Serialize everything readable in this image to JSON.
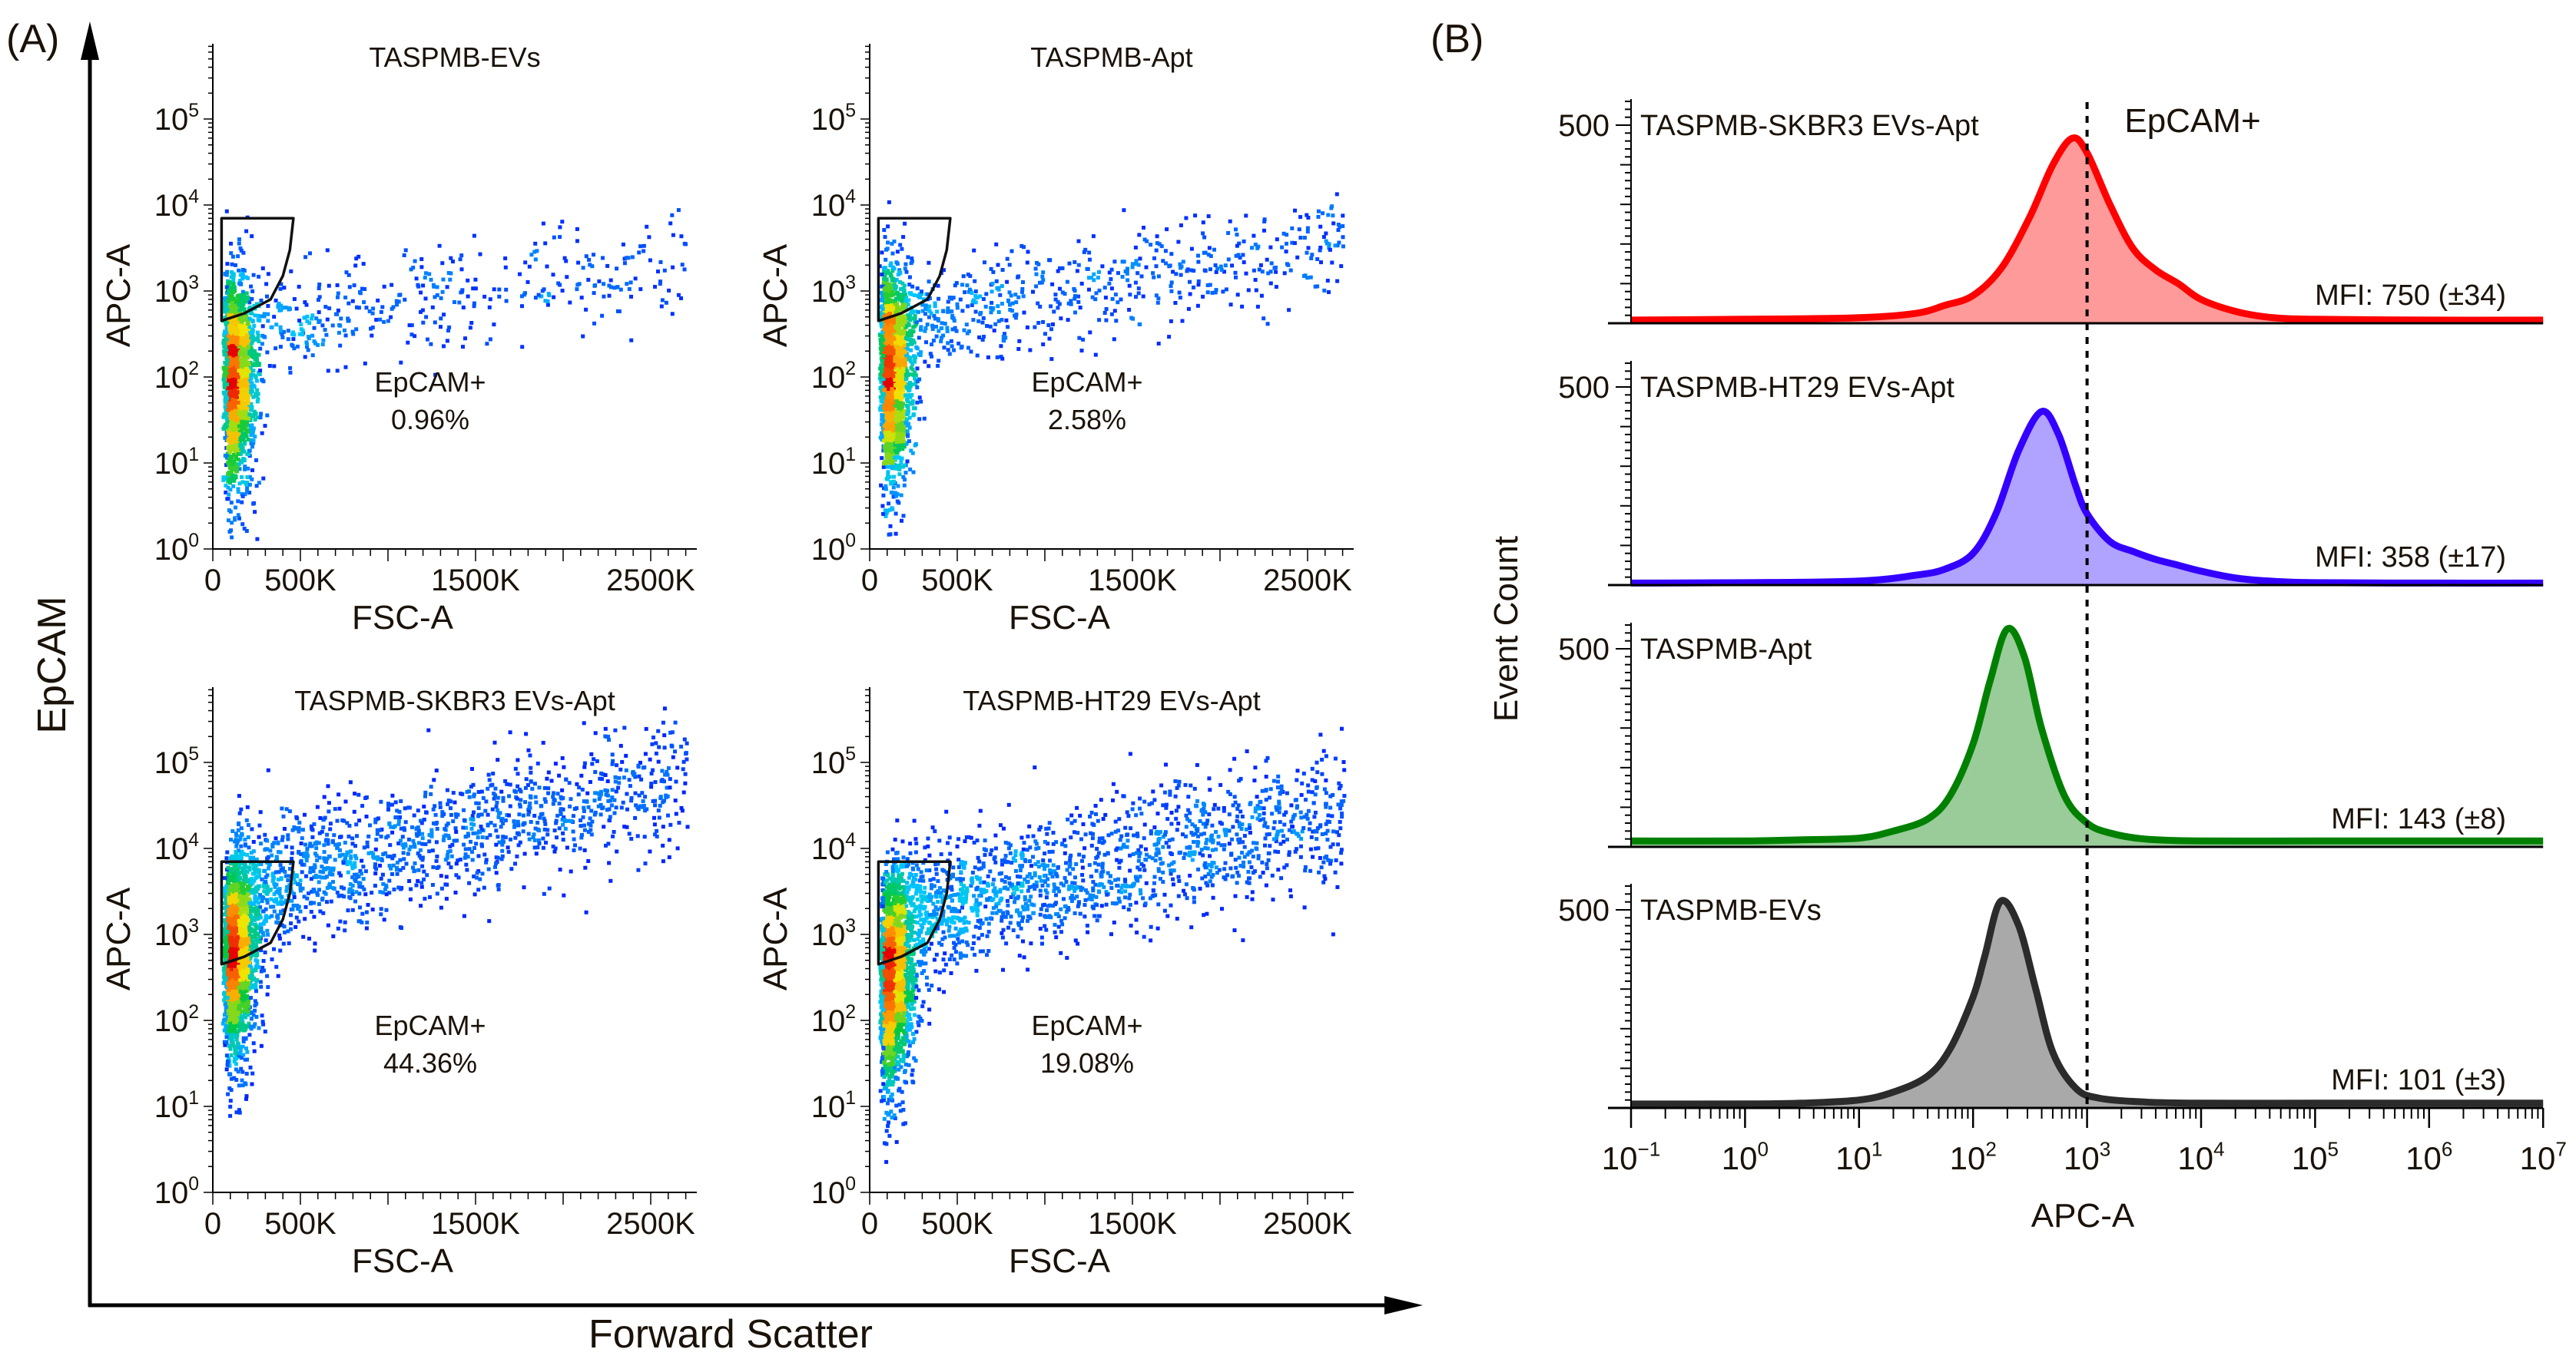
{
  "panel_a": {
    "label": "(A)",
    "y_label": "EpCAM",
    "x_label": "Forward Scatter"
  },
  "panel_b": {
    "label": "(B)",
    "gate_label": "EpCAM+"
  },
  "chart_data": [
    {
      "type": "scatter",
      "title": "TASPMB-EVs",
      "xlabel": "FSC-A",
      "ylabel": "APC-A",
      "x_scale": "linear",
      "y_scale": "log",
      "xlim_K": [
        0,
        2760
      ],
      "ylim_log10": [
        0,
        5.88
      ],
      "x_tick_labels": [
        "0",
        "500K",
        "1500K",
        "2500K"
      ],
      "x_tick_values_K": [
        0,
        500,
        1500,
        2500
      ],
      "y_ticks": [
        {
          "base": "10",
          "exp": "0"
        },
        {
          "base": "10",
          "exp": "1"
        },
        {
          "base": "10",
          "exp": "2"
        },
        {
          "base": "10",
          "exp": "3"
        },
        {
          "base": "10",
          "exp": "4"
        },
        {
          "base": "10",
          "exp": "5"
        }
      ],
      "gate_name": "EpCAM+",
      "gate_percent": "0.96%",
      "gate_vertices_K_value": [
        [
          50,
          7000
        ],
        [
          460,
          7000
        ],
        [
          440,
          3000
        ],
        [
          400,
          1500
        ],
        [
          330,
          800
        ],
        [
          180,
          550
        ],
        [
          50,
          450
        ]
      ]
    },
    {
      "type": "scatter",
      "title": "TASPMB-Apt",
      "xlabel": "FSC-A",
      "ylabel": "APC-A",
      "x_scale": "linear",
      "y_scale": "log",
      "xlim_K": [
        0,
        2760
      ],
      "ylim_log10": [
        0,
        5.88
      ],
      "x_tick_labels": [
        "0",
        "500K",
        "1500K",
        "2500K"
      ],
      "x_tick_values_K": [
        0,
        500,
        1500,
        2500
      ],
      "y_ticks": [
        {
          "base": "10",
          "exp": "0"
        },
        {
          "base": "10",
          "exp": "1"
        },
        {
          "base": "10",
          "exp": "2"
        },
        {
          "base": "10",
          "exp": "3"
        },
        {
          "base": "10",
          "exp": "4"
        },
        {
          "base": "10",
          "exp": "5"
        }
      ],
      "gate_name": "EpCAM+",
      "gate_percent": "2.58%",
      "gate_vertices_K_value": [
        [
          50,
          7000
        ],
        [
          460,
          7000
        ],
        [
          440,
          3000
        ],
        [
          400,
          1500
        ],
        [
          330,
          800
        ],
        [
          180,
          550
        ],
        [
          50,
          450
        ]
      ]
    },
    {
      "type": "scatter",
      "title": "TASPMB-SKBR3 EVs-Apt",
      "xlabel": "FSC-A",
      "ylabel": "APC-A",
      "x_scale": "linear",
      "y_scale": "log",
      "xlim_K": [
        0,
        2760
      ],
      "ylim_log10": [
        0,
        5.88
      ],
      "x_tick_labels": [
        "0",
        "500K",
        "1500K",
        "2500K"
      ],
      "x_tick_values_K": [
        0,
        500,
        1500,
        2500
      ],
      "y_ticks": [
        {
          "base": "10",
          "exp": "0"
        },
        {
          "base": "10",
          "exp": "1"
        },
        {
          "base": "10",
          "exp": "2"
        },
        {
          "base": "10",
          "exp": "3"
        },
        {
          "base": "10",
          "exp": "4"
        },
        {
          "base": "10",
          "exp": "5"
        }
      ],
      "gate_name": "EpCAM+",
      "gate_percent": "44.36%",
      "gate_vertices_K_value": [
        [
          50,
          7000
        ],
        [
          460,
          7000
        ],
        [
          440,
          3000
        ],
        [
          400,
          1500
        ],
        [
          330,
          800
        ],
        [
          180,
          550
        ],
        [
          50,
          450
        ]
      ]
    },
    {
      "type": "scatter",
      "title": "TASPMB-HT29 EVs-Apt",
      "xlabel": "FSC-A",
      "ylabel": "APC-A",
      "x_scale": "linear",
      "y_scale": "log",
      "xlim_K": [
        0,
        2760
      ],
      "ylim_log10": [
        0,
        5.88
      ],
      "x_tick_labels": [
        "0",
        "500K",
        "1500K",
        "2500K"
      ],
      "x_tick_values_K": [
        0,
        500,
        1500,
        2500
      ],
      "y_ticks": [
        {
          "base": "10",
          "exp": "0"
        },
        {
          "base": "10",
          "exp": "1"
        },
        {
          "base": "10",
          "exp": "2"
        },
        {
          "base": "10",
          "exp": "3"
        },
        {
          "base": "10",
          "exp": "4"
        },
        {
          "base": "10",
          "exp": "5"
        }
      ],
      "gate_name": "EpCAM+",
      "gate_percent": "19.08%",
      "gate_vertices_K_value": [
        [
          50,
          7000
        ],
        [
          460,
          7000
        ],
        [
          440,
          3000
        ],
        [
          400,
          1500
        ],
        [
          330,
          800
        ],
        [
          180,
          550
        ],
        [
          50,
          450
        ]
      ]
    },
    {
      "type": "area",
      "title": "",
      "xlabel": "APC-A",
      "ylabel": "Event Count",
      "x_scale": "log",
      "xlim_log10": [
        -1,
        7
      ],
      "ylim": [
        0,
        566
      ],
      "y_tick_label": "500",
      "y_tick_value": 500,
      "x_ticks": [
        {
          "base": "10",
          "exp": "−1"
        },
        {
          "base": "10",
          "exp": "0"
        },
        {
          "base": "10",
          "exp": "1"
        },
        {
          "base": "10",
          "exp": "2"
        },
        {
          "base": "10",
          "exp": "3"
        },
        {
          "base": "10",
          "exp": "4"
        },
        {
          "base": "10",
          "exp": "5"
        },
        {
          "base": "10",
          "exp": "6"
        },
        {
          "base": "10",
          "exp": "7"
        }
      ],
      "threshold_log10": 3,
      "series": [
        {
          "name": "TASPMB-SKBR3 EVs-Apt",
          "mfi": "MFI: 750 (±34)",
          "stroke": "#ff0000",
          "fill": "#ff9a9a",
          "x_log10": [
            -1,
            0,
            1,
            1.5,
            1.75,
            2,
            2.25,
            2.5,
            2.7,
            2.87,
            3.0,
            3.2,
            3.4,
            3.6,
            3.8,
            4.0,
            4.3,
            4.6,
            5,
            6,
            7
          ],
          "y": [
            8,
            10,
            14,
            25,
            45,
            70,
            140,
            270,
            400,
            467,
            430,
            300,
            190,
            135,
            100,
            60,
            30,
            15,
            10,
            8,
            8
          ]
        },
        {
          "name": "TASPMB-HT29 EVs-Apt",
          "mfi": "MFI: 358 (±17)",
          "stroke": "#3300ff",
          "fill": "#b0a2ff",
          "x_log10": [
            -1,
            0,
            1,
            1.5,
            1.75,
            2,
            2.2,
            2.4,
            2.6,
            2.75,
            2.9,
            3.0,
            3.2,
            3.4,
            3.6,
            3.8,
            4.0,
            4.3,
            4.6,
            5,
            6,
            7
          ],
          "y": [
            5,
            6,
            10,
            25,
            40,
            80,
            180,
            340,
            438,
            380,
            250,
            180,
            110,
            85,
            65,
            50,
            35,
            18,
            10,
            6,
            5,
            5
          ]
        },
        {
          "name": "TASPMB-Apt",
          "mfi": "MFI: 143 (±8)",
          "stroke": "#008000",
          "fill": "#99cc99",
          "x_log10": [
            -1,
            0,
            0.5,
            1,
            1.3,
            1.6,
            1.8,
            2.0,
            2.15,
            2.3,
            2.45,
            2.6,
            2.8,
            3.0,
            3.2,
            3.5,
            4,
            5,
            6,
            7
          ],
          "y": [
            15,
            15,
            18,
            22,
            40,
            70,
            130,
            260,
            420,
            550,
            480,
            300,
            130,
            60,
            35,
            20,
            15,
            15,
            15,
            15
          ]
        },
        {
          "name": "TASPMB-EVs",
          "mfi": "MFI: 101 (±3)",
          "stroke": "#2b2b2b",
          "fill": "#a9a9a9",
          "x_log10": [
            -1,
            0,
            0.5,
            1,
            1.3,
            1.6,
            1.8,
            2.0,
            2.1,
            2.24,
            2.4,
            2.55,
            2.7,
            2.9,
            3.1,
            3.5,
            4,
            5,
            6,
            7
          ],
          "y": [
            10,
            10,
            12,
            20,
            40,
            80,
            150,
            280,
            380,
            521,
            460,
            300,
            140,
            50,
            25,
            15,
            12,
            12,
            12,
            12
          ]
        }
      ]
    }
  ]
}
